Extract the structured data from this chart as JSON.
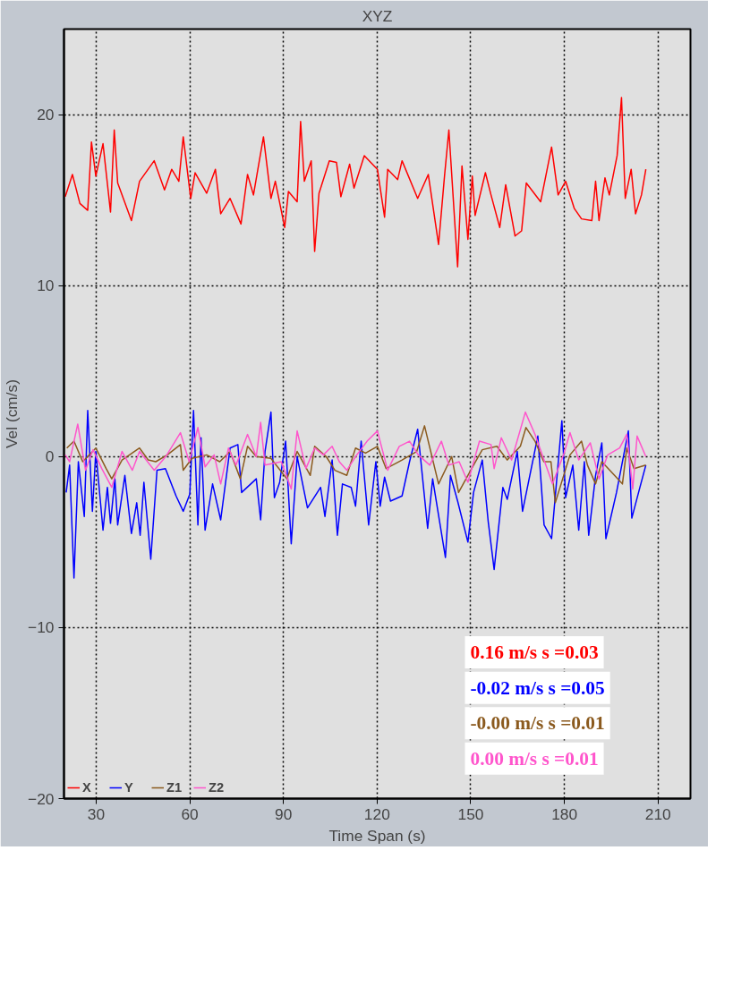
{
  "chart_data": {
    "type": "line",
    "title": "XYZ",
    "xlabel": "Time Span (s)",
    "ylabel": "Vel (cm/s)",
    "xlim": [
      19.7,
      220.4
    ],
    "ylim": [
      -20,
      25
    ],
    "xticks": [
      30,
      60,
      90,
      120,
      150,
      180,
      210
    ],
    "yticks": [
      -20,
      -10,
      0,
      10,
      20
    ],
    "grid": true,
    "legend": "bottom left",
    "marker": "none",
    "line_style": "solid",
    "annotations": [
      "0.16 m/s s =0.03",
      "-0.02 m/s s =0.05",
      "-0.00 m/s s =0.01",
      "0.00 m/s s =0.01"
    ],
    "series": [
      {
        "name": "X",
        "color": "#ff0000",
        "x": [
          20.1,
          22.4,
          24.8,
          27.3,
          28.5,
          29.9,
          32.2,
          34.6,
          35.8,
          36.9,
          41.3,
          43.9,
          48.6,
          51.9,
          54.2,
          56.5,
          57.9,
          60.3,
          61.7,
          65.4,
          68.2,
          69.9,
          72.9,
          76.4,
          78.5,
          80.4,
          83.6,
          86.0,
          87.4,
          90.4,
          91.6,
          94.4,
          95.5,
          96.7,
          98.9,
          100.0,
          101.4,
          104.7,
          107.0,
          108.4,
          111.2,
          112.6,
          115.9,
          120.1,
          122.4,
          123.4,
          126.6,
          128.0,
          133.0,
          136.4,
          139.7,
          141.6,
          143.0,
          145.8,
          147.2,
          149.1,
          150.5,
          151.4,
          154.7,
          156.5,
          159.3,
          161.2,
          164.2,
          166.3,
          167.8,
          172.4,
          175.9,
          178.0,
          180.4,
          183.2,
          185.5,
          188.8,
          190.0,
          191.1,
          193.0,
          194.4,
          196.9,
          198.3,
          199.5,
          201.4,
          202.8,
          204.7,
          206.1
        ],
        "values": [
          15.2,
          16.5,
          14.8,
          14.4,
          18.4,
          16.4,
          18.3,
          14.3,
          19.1,
          16.0,
          13.8,
          16.1,
          17.3,
          15.6,
          16.8,
          16.1,
          18.7,
          15.1,
          16.6,
          15.4,
          16.8,
          14.2,
          15.1,
          13.6,
          16.5,
          15.3,
          18.7,
          15.1,
          16.1,
          13.4,
          15.5,
          14.9,
          19.6,
          16.1,
          17.3,
          12.0,
          15.4,
          17.3,
          17.2,
          15.2,
          17.1,
          15.7,
          17.6,
          16.8,
          14.0,
          16.8,
          16.2,
          17.3,
          15.1,
          16.5,
          12.4,
          16.4,
          19.1,
          11.1,
          17.0,
          12.7,
          16.4,
          14.1,
          16.6,
          15.3,
          13.4,
          15.9,
          12.9,
          13.2,
          16.0,
          14.9,
          18.1,
          15.3,
          16.1,
          14.5,
          13.9,
          13.8,
          16.1,
          13.8,
          16.3,
          15.3,
          17.6,
          21.0,
          15.1,
          16.8,
          14.2,
          15.3,
          16.8
        ]
      },
      {
        "name": "Y",
        "color": "#0000ff",
        "x": [
          20.4,
          21.5,
          22.9,
          24.3,
          26.2,
          27.3,
          28.8,
          29.9,
          32.2,
          33.6,
          34.6,
          36.0,
          36.9,
          39.2,
          41.3,
          43.0,
          44.1,
          45.3,
          47.5,
          49.5,
          52.2,
          55.6,
          57.9,
          60.0,
          61.2,
          62.6,
          63.6,
          64.9,
          67.3,
          69.9,
          72.9,
          75.4,
          76.6,
          81.3,
          82.7,
          84.1,
          86.0,
          87.1,
          88.8,
          90.7,
          92.5,
          94.4,
          97.7,
          101.9,
          103.3,
          105.6,
          107.3,
          108.9,
          111.7,
          113.1,
          114.9,
          117.3,
          119.6,
          121.0,
          122.4,
          124.3,
          128.0,
          130.4,
          133.0,
          136.2,
          137.8,
          141.9,
          143.5,
          145.8,
          149.1,
          150.9,
          153.7,
          155.6,
          157.5,
          160.3,
          161.7,
          164.9,
          166.6,
          171.5,
          173.5,
          175.9,
          179.2,
          180.4,
          182.7,
          184.6,
          186.4,
          187.8,
          190.0,
          192.0,
          193.3,
          196.7,
          200.5,
          201.6,
          204.2,
          206.1
        ],
        "values": [
          -2.1,
          -0.5,
          -7.1,
          -0.3,
          -3.5,
          2.7,
          -3.2,
          0.3,
          -4.3,
          -1.8,
          -3.9,
          -1.3,
          -4.0,
          -1.1,
          -4.5,
          -2.7,
          -4.6,
          -1.5,
          -6.0,
          -0.8,
          -0.7,
          -2.3,
          -3.2,
          -2.2,
          2.7,
          -4.0,
          1.1,
          -4.3,
          -1.6,
          -3.7,
          0.5,
          0.7,
          -2.1,
          -1.3,
          -3.7,
          0.3,
          2.6,
          -2.4,
          -1.5,
          0.9,
          -5.1,
          0.0,
          -3.0,
          -1.8,
          -3.5,
          -0.2,
          -4.6,
          -1.6,
          -1.8,
          -2.9,
          0.9,
          -4.0,
          -0.3,
          -2.9,
          -1.2,
          -2.6,
          -2.3,
          -0.3,
          1.6,
          -4.2,
          -1.3,
          -5.9,
          -1.1,
          -2.6,
          -5.0,
          -2.1,
          -0.2,
          -3.8,
          -6.6,
          -1.8,
          -2.5,
          0.3,
          -3.2,
          1.2,
          -4.0,
          -4.8,
          2.1,
          -2.4,
          -0.5,
          -4.3,
          -0.3,
          -4.6,
          -1.1,
          0.8,
          -4.8,
          -2.1,
          1.5,
          -3.6,
          -1.8,
          -0.5
        ]
      },
      {
        "name": "Z1",
        "color": "#8b5a1e",
        "x": [
          20.6,
          22.9,
          25.7,
          29.9,
          33.2,
          35.0,
          38.3,
          43.9,
          46.7,
          49.1,
          52.8,
          57.0,
          57.9,
          60.7,
          65.4,
          69.6,
          72.9,
          76.2,
          78.5,
          81.3,
          86.0,
          91.1,
          94.4,
          98.6,
          100.0,
          103.7,
          106.5,
          110.3,
          113.1,
          116.3,
          120.1,
          122.9,
          128.0,
          132.7,
          135.2,
          139.7,
          143.9,
          146.1,
          150.9,
          153.7,
          158.4,
          161.7,
          165.9,
          167.7,
          170.6,
          173.4,
          175.7,
          177.1,
          181.8,
          185.5,
          187.4,
          190.0,
          192.0,
          198.6,
          200.0,
          202.3,
          206.1
        ],
        "values": [
          0.5,
          0.9,
          -0.3,
          0.5,
          -0.7,
          -1.3,
          -0.2,
          0.5,
          -0.2,
          -0.3,
          0.1,
          0.7,
          -0.8,
          -0.1,
          0.1,
          -0.3,
          0.3,
          -1.3,
          0.6,
          0.0,
          -0.1,
          -1.3,
          0.3,
          -1.1,
          0.6,
          0.0,
          -0.8,
          -1.1,
          0.5,
          0.2,
          0.6,
          -0.7,
          -0.2,
          0.3,
          1.8,
          -1.6,
          0.0,
          -2.1,
          -0.5,
          0.4,
          0.6,
          -0.2,
          0.6,
          1.7,
          0.9,
          -0.3,
          -0.3,
          -2.7,
          0.1,
          0.9,
          -0.5,
          -1.6,
          -0.3,
          -1.6,
          0.5,
          -0.7,
          -0.5
        ]
      },
      {
        "name": "Z2",
        "color": "#ff55cc",
        "x": [
          20.1,
          21.5,
          24.1,
          26.6,
          29.0,
          31.8,
          35.0,
          38.3,
          41.6,
          43.9,
          48.6,
          52.3,
          57.0,
          59.8,
          62.6,
          64.9,
          67.8,
          69.9,
          72.4,
          74.8,
          78.5,
          81.3,
          82.7,
          84.1,
          89.3,
          92.5,
          94.4,
          97.2,
          100.0,
          102.8,
          105.6,
          107.9,
          110.3,
          113.5,
          116.8,
          120.1,
          123.4,
          127.1,
          130.4,
          133.2,
          136.9,
          140.6,
          143.0,
          146.3,
          149.1,
          152.8,
          156.5,
          157.5,
          159.8,
          163.1,
          167.5,
          170.6,
          172.9,
          176.2,
          179.9,
          181.8,
          184.6,
          188.3,
          191.1,
          193.9,
          197.7,
          200.0,
          201.9,
          203.3,
          206.1
        ],
        "values": [
          0.1,
          -0.3,
          1.9,
          -0.8,
          0.4,
          -0.7,
          -1.8,
          0.3,
          -0.8,
          0.3,
          -0.8,
          0.0,
          1.4,
          -0.3,
          1.7,
          -0.6,
          0.1,
          -1.6,
          0.5,
          -0.5,
          1.3,
          0.0,
          2.0,
          -0.5,
          -0.3,
          -1.9,
          1.5,
          -0.7,
          0.5,
          0.1,
          0.6,
          -0.3,
          -0.8,
          0.1,
          0.9,
          1.5,
          -0.8,
          0.6,
          0.9,
          0.1,
          -0.5,
          0.9,
          -0.5,
          -0.3,
          -1.5,
          0.9,
          0.7,
          -0.7,
          1.1,
          -0.2,
          2.6,
          1.3,
          0.1,
          -1.6,
          0.2,
          1.4,
          -0.2,
          0.8,
          -1.3,
          0.1,
          0.5,
          1.3,
          -1.9,
          1.2,
          0.0
        ]
      }
    ]
  }
}
